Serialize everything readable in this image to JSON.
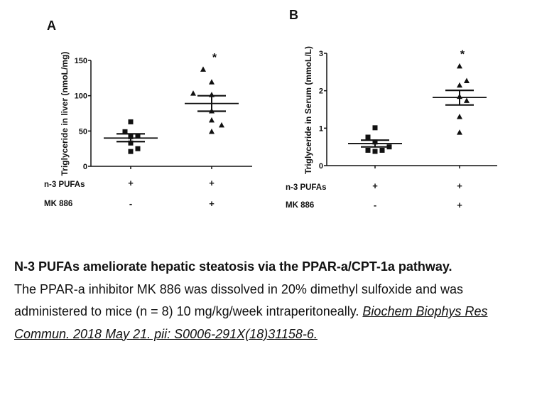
{
  "chart_data": [
    {
      "type": "scatter",
      "panel_label": "A",
      "ylabel": "Triglyceride in liver (nmoL/mg)",
      "ylim": [
        0,
        150
      ],
      "yticks": [
        "0",
        "50",
        "100",
        "150"
      ],
      "ytick_values": [
        0,
        50,
        100,
        150
      ],
      "significance_marker": "*",
      "row_labels": [
        "n-3 PUFAs",
        "MK 886"
      ],
      "groups": [
        {
          "marker": "square",
          "n3_pufas": "+",
          "mk886": "-",
          "values": [
            63,
            49,
            43,
            42,
            33,
            25,
            21
          ],
          "mean": 40,
          "sem_upper": 46,
          "sem_lower": 35,
          "significant": false
        },
        {
          "marker": "triangle",
          "n3_pufas": "+",
          "mk886": "+",
          "values": [
            137,
            119,
            103,
            101,
            78,
            65,
            58,
            49
          ],
          "mean": 89,
          "sem_upper": 100,
          "sem_lower": 78,
          "significant": true
        }
      ]
    },
    {
      "type": "scatter",
      "panel_label": "B",
      "ylabel": "Triglyceride in Serum (mmoL/L)",
      "ylim": [
        0,
        3
      ],
      "yticks": [
        "0",
        "1",
        "2",
        "3"
      ],
      "ytick_values": [
        0,
        1,
        2,
        3
      ],
      "significance_marker": "*",
      "row_labels": [
        "n-3 PUFAs",
        "MK 886"
      ],
      "groups": [
        {
          "marker": "square",
          "n3_pufas": "+",
          "mk886": "-",
          "values": [
            1.01,
            0.76,
            0.63,
            0.5,
            0.41,
            0.38,
            0.41
          ],
          "mean": 0.59,
          "sem_upper": 0.68,
          "sem_lower": 0.5,
          "significant": false
        },
        {
          "marker": "triangle",
          "n3_pufas": "+",
          "mk886": "+",
          "values": [
            2.65,
            2.26,
            2.14,
            1.84,
            1.73,
            1.3,
            0.88
          ],
          "mean": 1.82,
          "sem_upper": 2.01,
          "sem_lower": 1.62,
          "significant": true
        }
      ]
    }
  ],
  "caption": {
    "title": "N-3 PUFAs ameliorate hepatic steatosis via the PPAR-a/CPT-1a pathway.",
    "body": "The PPAR-a inhibitor MK 886 was dissolved in 20% dimethyl sulfoxide and was administered to mice (n = 8) 10 mg/kg/week intraperitoneally.",
    "citation": "Biochem Biophys Res Commun. 2018 May 21. pii: S0006-291X(18)31158-6."
  }
}
